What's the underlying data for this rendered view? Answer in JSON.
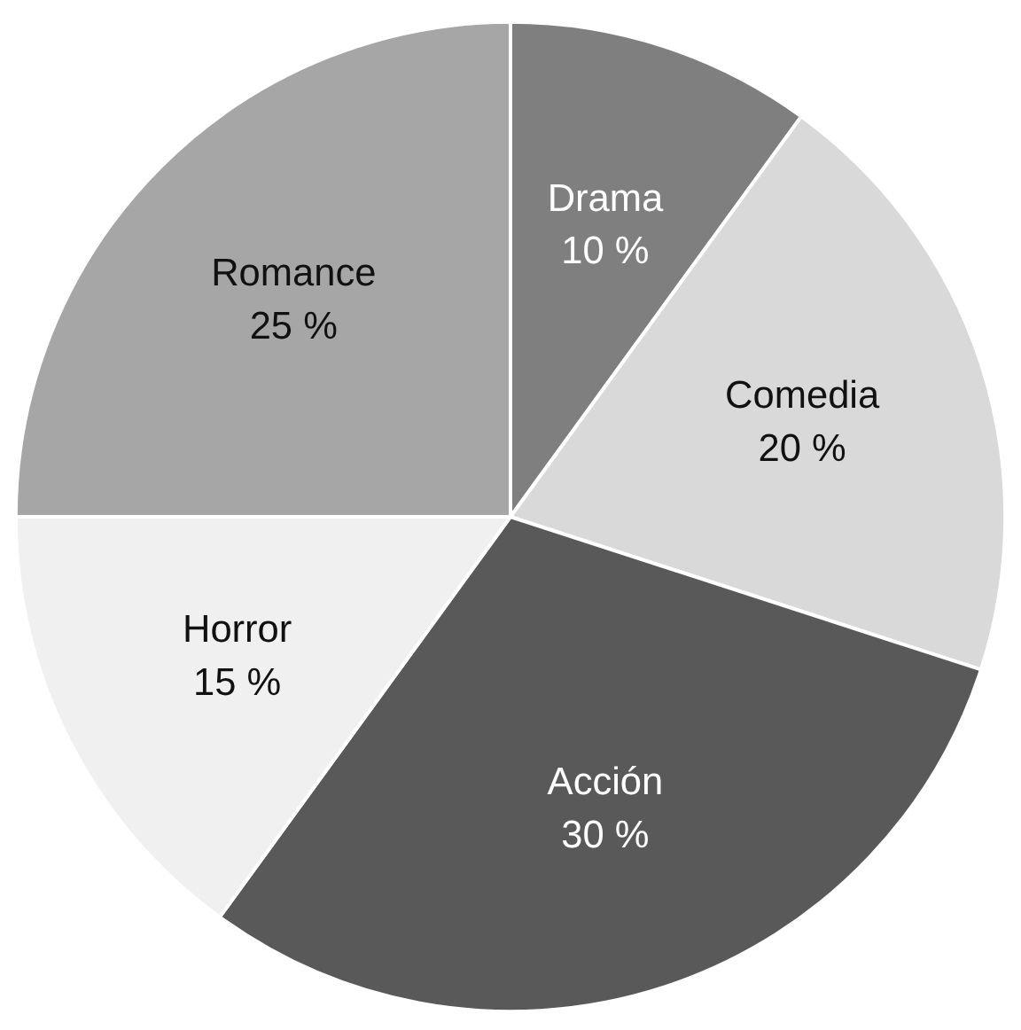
{
  "chart_data": {
    "type": "pie",
    "categories": [
      "Drama",
      "Comedia",
      "Acción",
      "Horror",
      "Romance"
    ],
    "values": [
      10,
      20,
      30,
      15,
      25
    ],
    "value_labels": [
      "10 %",
      "20 %",
      "30 %",
      "15 %",
      "25 %"
    ],
    "colors": [
      "#7f7f7f",
      "#d9d9d9",
      "#595959",
      "#f0f0f0",
      "#a6a6a6"
    ],
    "legend": false
  }
}
